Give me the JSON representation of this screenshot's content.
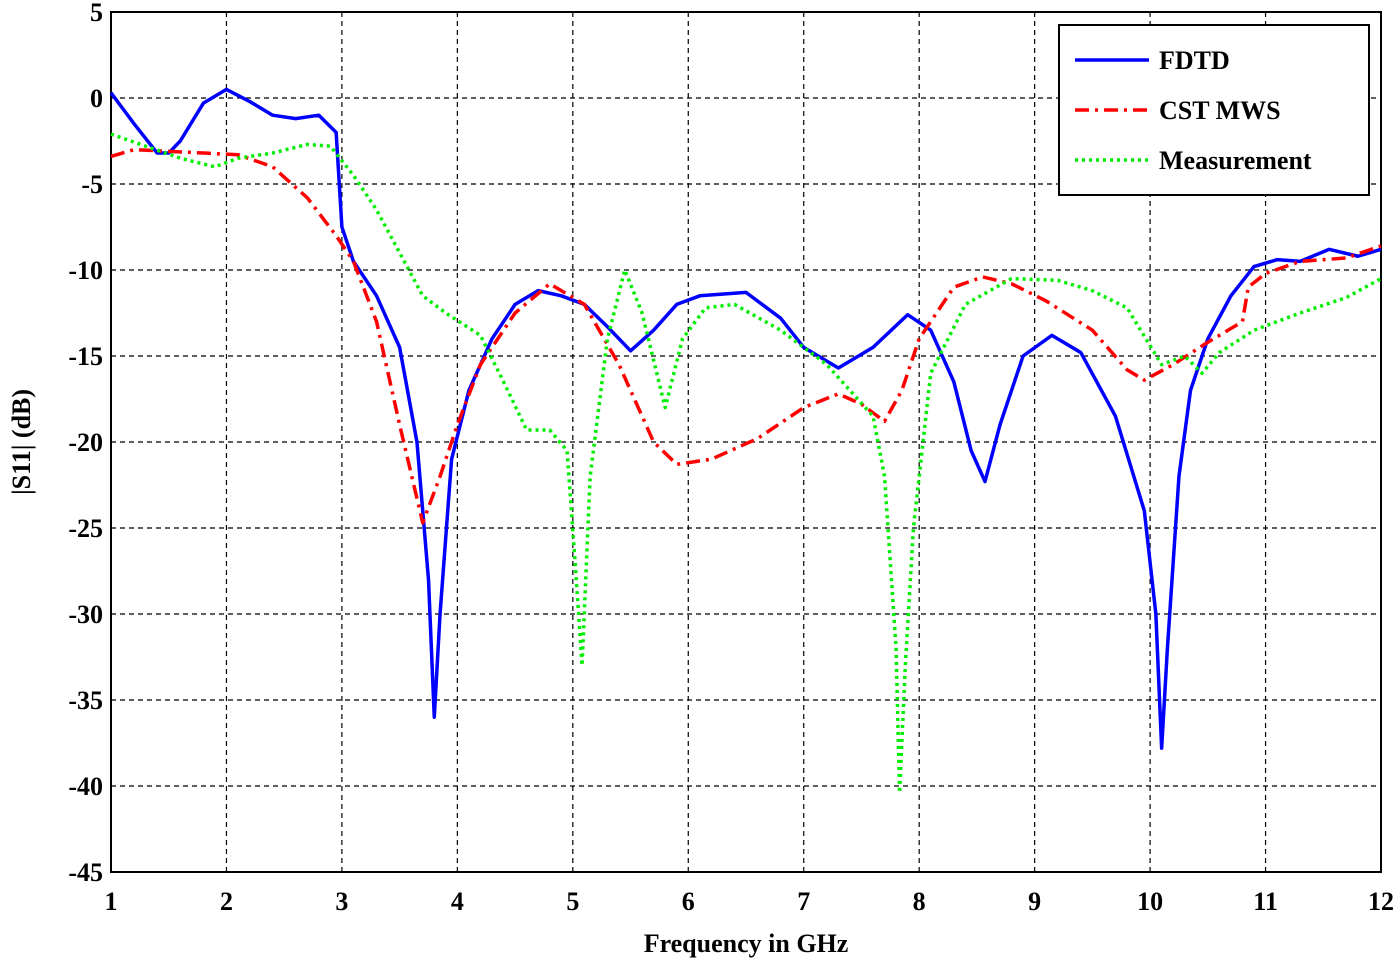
{
  "chart_data": {
    "type": "line",
    "xlabel": "Frequency in GHz",
    "ylabel": "|S11| (dB)",
    "xlim": [
      1,
      12
    ],
    "xticks": [
      1,
      2,
      3,
      4,
      5,
      6,
      7,
      8,
      9,
      10,
      11,
      12
    ],
    "ylim": [
      -45,
      5
    ],
    "yticks": [
      -45,
      -40,
      -35,
      -30,
      -25,
      -20,
      -15,
      -10,
      -5,
      0,
      5
    ],
    "grid": true,
    "legend": "upper right",
    "series": [
      {
        "name": "FDTD",
        "color": "#0000ff",
        "dash": "solid",
        "x": [
          1.0,
          1.2,
          1.4,
          1.5,
          1.6,
          1.8,
          2.0,
          2.2,
          2.4,
          2.6,
          2.8,
          2.95,
          3.0,
          3.1,
          3.3,
          3.5,
          3.65,
          3.75,
          3.8,
          3.85,
          3.95,
          4.1,
          4.3,
          4.5,
          4.7,
          4.9,
          5.1,
          5.3,
          5.5,
          5.7,
          5.9,
          6.1,
          6.5,
          6.8,
          7.0,
          7.3,
          7.6,
          7.9,
          8.1,
          8.3,
          8.45,
          8.57,
          8.7,
          8.9,
          9.15,
          9.4,
          9.7,
          9.95,
          10.05,
          10.1,
          10.15,
          10.25,
          10.35,
          10.5,
          10.7,
          10.9,
          11.1,
          11.3,
          11.55,
          11.8,
          12.0
        ],
        "values": [
          0.3,
          -1.5,
          -3.2,
          -3.2,
          -2.5,
          -0.3,
          0.5,
          -0.2,
          -1.0,
          -1.2,
          -1.0,
          -2.0,
          -7.5,
          -9.5,
          -11.5,
          -14.5,
          -20,
          -28,
          -36,
          -30,
          -21,
          -17,
          -14,
          -12,
          -11.2,
          -11.5,
          -12,
          -13.3,
          -14.7,
          -13.5,
          -12,
          -11.5,
          -11.3,
          -12.8,
          -14.5,
          -15.7,
          -14.5,
          -12.6,
          -13.5,
          -16.5,
          -20.5,
          -22.3,
          -19,
          -15,
          -13.8,
          -14.8,
          -18.5,
          -24,
          -30,
          -37.8,
          -32,
          -22,
          -17,
          -14,
          -11.5,
          -9.8,
          -9.4,
          -9.5,
          -8.8,
          -9.2,
          -8.8
        ]
      },
      {
        "name": "CST MWS",
        "color": "#ff0000",
        "dash": "dashdot",
        "x": [
          1.0,
          1.2,
          1.5,
          1.8,
          2.1,
          2.4,
          2.7,
          2.95,
          3.1,
          3.3,
          3.5,
          3.7,
          3.85,
          4.0,
          4.2,
          4.5,
          4.8,
          5.1,
          5.4,
          5.7,
          5.9,
          6.2,
          6.6,
          7.0,
          7.3,
          7.5,
          7.7,
          7.85,
          8.0,
          8.3,
          8.55,
          8.8,
          9.1,
          9.5,
          9.8,
          9.95,
          10.2,
          10.5,
          10.8,
          10.85,
          11.0,
          11.3,
          11.7,
          12.0
        ],
        "values": [
          -3.4,
          -3,
          -3.1,
          -3.2,
          -3.3,
          -4,
          -5.8,
          -8,
          -9.5,
          -13,
          -19,
          -24.7,
          -22,
          -19,
          -15.5,
          -12.5,
          -10.8,
          -12,
          -15.5,
          -20,
          -21.3,
          -21,
          -19.8,
          -18,
          -17.2,
          -17.8,
          -18.8,
          -17,
          -14,
          -11,
          -10.4,
          -10.8,
          -11.8,
          -13.5,
          -15.8,
          -16.4,
          -15.5,
          -14.2,
          -13,
          -11,
          -10.2,
          -9.5,
          -9.3,
          -8.6
        ]
      },
      {
        "name": "Measurement",
        "color": "#00ee00",
        "dash": "dotted",
        "x": [
          1.0,
          1.3,
          1.6,
          1.9,
          2.1,
          2.4,
          2.7,
          2.9,
          3.1,
          3.3,
          3.5,
          3.7,
          3.9,
          4.2,
          4.4,
          4.6,
          4.8,
          4.95,
          5.02,
          5.08,
          5.15,
          5.3,
          5.45,
          5.6,
          5.8,
          5.95,
          6.15,
          6.4,
          6.8,
          7.2,
          7.6,
          7.7,
          7.8,
          7.83,
          7.88,
          7.95,
          8.1,
          8.4,
          8.8,
          9.2,
          9.5,
          9.8,
          10.1,
          10.3,
          10.45,
          10.6,
          10.9,
          11.3,
          11.7,
          12.0
        ],
        "values": [
          -2.1,
          -2.8,
          -3.5,
          -4,
          -3.5,
          -3.2,
          -2.7,
          -2.8,
          -4.5,
          -6.5,
          -9,
          -11.5,
          -12.5,
          -13.8,
          -16.5,
          -19.3,
          -19.3,
          -20.5,
          -27,
          -33,
          -22,
          -14,
          -10,
          -12.5,
          -18,
          -14,
          -12.2,
          -12,
          -13.5,
          -15.5,
          -18.5,
          -22,
          -32,
          -40.4,
          -33,
          -25,
          -16,
          -12,
          -10.5,
          -10.6,
          -11.2,
          -12.2,
          -15.5,
          -15,
          -16,
          -14.8,
          -13.5,
          -12.5,
          -11.6,
          -10.5
        ]
      }
    ]
  }
}
